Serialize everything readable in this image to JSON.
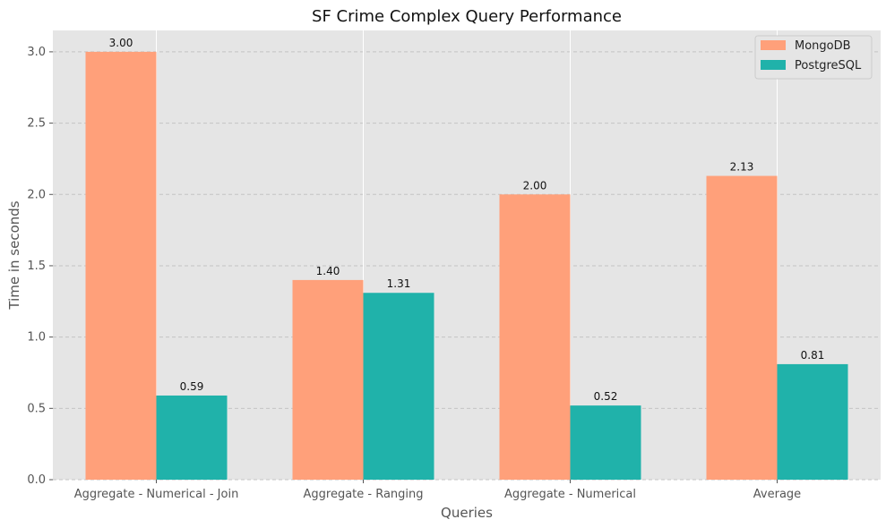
{
  "chart_data": {
    "type": "bar",
    "title": "SF Crime Complex Query Performance",
    "xlabel": "Queries",
    "ylabel": "Time in seconds",
    "categories": [
      "Aggregate - Numerical - Join",
      "Aggregate - Ranging",
      "Aggregate - Numerical",
      "Average"
    ],
    "series": [
      {
        "name": "MongoDB",
        "values": [
          3.0,
          1.4,
          2.0,
          2.13
        ],
        "labels": [
          "3.00",
          "1.40",
          "2.00",
          "2.13"
        ],
        "color": "#FFA07A"
      },
      {
        "name": "PostgreSQL",
        "values": [
          0.59,
          1.31,
          0.52,
          0.81
        ],
        "labels": [
          "0.59",
          "1.31",
          "0.52",
          "0.81"
        ],
        "color": "#20B2AA"
      }
    ],
    "ylim": [
      0,
      3.15
    ],
    "yticks": [
      "0.0",
      "0.5",
      "1.0",
      "1.5",
      "2.0",
      "2.5",
      "3.0"
    ],
    "grid": true,
    "legend": "top-right",
    "background": "#E5E5E5"
  }
}
